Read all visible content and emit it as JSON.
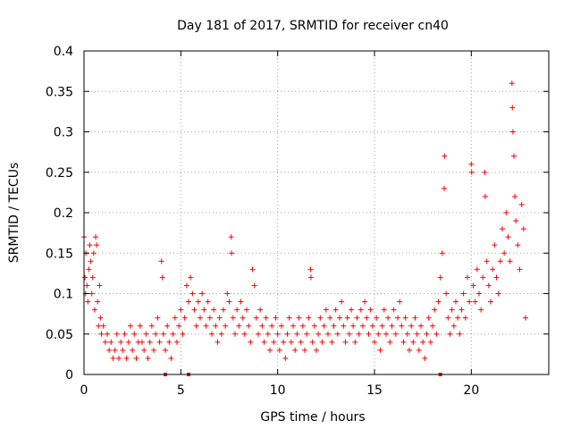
{
  "chart_data": {
    "type": "scatter",
    "title": "Day 181 of 2017, SRMTID for receiver cn40",
    "xlabel": "GPS time / hours",
    "ylabel": "SRMTID / TECUs",
    "xlim": [
      0,
      24
    ],
    "ylim": [
      0,
      0.4
    ],
    "x_ticks": [
      0,
      5,
      10,
      15,
      20
    ],
    "x_tick_labels": [
      "0",
      "5",
      "10",
      "15",
      "20"
    ],
    "y_ticks": [
      0,
      0.05,
      0.1,
      0.15,
      0.2,
      0.25,
      0.3,
      0.35,
      0.4
    ],
    "y_tick_labels": [
      "0",
      "0.05",
      "0.1",
      "0.15",
      "0.2",
      "0.25",
      "0.3",
      "0.35",
      "0.4"
    ],
    "grid": true,
    "marker": "plus",
    "color": "#ff0000",
    "series": [
      {
        "name": "SRMTID",
        "points": [
          [
            0.0,
            0.17
          ],
          [
            0.05,
            0.12
          ],
          [
            0.08,
            0.1
          ],
          [
            0.1,
            0.15
          ],
          [
            0.15,
            0.11
          ],
          [
            0.2,
            0.09
          ],
          [
            0.25,
            0.13
          ],
          [
            0.3,
            0.16
          ],
          [
            0.35,
            0.14
          ],
          [
            0.4,
            0.1
          ],
          [
            0.45,
            0.12
          ],
          [
            0.5,
            0.15
          ],
          [
            0.55,
            0.08
          ],
          [
            0.6,
            0.17
          ],
          [
            0.65,
            0.16
          ],
          [
            0.7,
            0.09
          ],
          [
            0.75,
            0.06
          ],
          [
            0.8,
            0.11
          ],
          [
            0.85,
            0.07
          ],
          [
            0.9,
            0.05
          ],
          [
            1.0,
            0.06
          ],
          [
            1.1,
            0.04
          ],
          [
            1.2,
            0.05
          ],
          [
            1.3,
            0.03
          ],
          [
            1.4,
            0.04
          ],
          [
            1.5,
            0.02
          ],
          [
            1.6,
            0.03
          ],
          [
            1.7,
            0.05
          ],
          [
            1.8,
            0.02
          ],
          [
            1.9,
            0.04
          ],
          [
            2.0,
            0.03
          ],
          [
            2.1,
            0.05
          ],
          [
            2.2,
            0.02
          ],
          [
            2.3,
            0.04
          ],
          [
            2.4,
            0.06
          ],
          [
            2.5,
            0.03
          ],
          [
            2.6,
            0.05
          ],
          [
            2.7,
            0.02
          ],
          [
            2.8,
            0.04
          ],
          [
            2.9,
            0.06
          ],
          [
            3.0,
            0.04
          ],
          [
            3.1,
            0.03
          ],
          [
            3.2,
            0.05
          ],
          [
            3.3,
            0.02
          ],
          [
            3.4,
            0.04
          ],
          [
            3.5,
            0.06
          ],
          [
            3.6,
            0.03
          ],
          [
            3.7,
            0.05
          ],
          [
            3.8,
            0.07
          ],
          [
            3.9,
            0.04
          ],
          [
            4.0,
            0.14
          ],
          [
            4.05,
            0.12
          ],
          [
            4.1,
            0.05
          ],
          [
            4.2,
            0.03
          ],
          [
            4.3,
            0.06
          ],
          [
            4.4,
            0.04
          ],
          [
            4.5,
            0.02
          ],
          [
            4.6,
            0.05
          ],
          [
            4.7,
            0.07
          ],
          [
            4.8,
            0.04
          ],
          [
            4.9,
            0.06
          ],
          [
            5.0,
            0.08
          ],
          [
            5.1,
            0.05
          ],
          [
            5.2,
            0.07
          ],
          [
            5.3,
            0.11
          ],
          [
            5.4,
            0.09
          ],
          [
            5.5,
            0.12
          ],
          [
            5.6,
            0.1
          ],
          [
            5.7,
            0.08
          ],
          [
            5.8,
            0.06
          ],
          [
            5.9,
            0.09
          ],
          [
            6.0,
            0.07
          ],
          [
            6.1,
            0.1
          ],
          [
            6.2,
            0.08
          ],
          [
            6.3,
            0.06
          ],
          [
            6.4,
            0.09
          ],
          [
            6.5,
            0.07
          ],
          [
            6.6,
            0.05
          ],
          [
            6.7,
            0.08
          ],
          [
            6.8,
            0.06
          ],
          [
            6.9,
            0.04
          ],
          [
            7.0,
            0.07
          ],
          [
            7.1,
            0.05
          ],
          [
            7.2,
            0.08
          ],
          [
            7.3,
            0.06
          ],
          [
            7.4,
            0.1
          ],
          [
            7.5,
            0.09
          ],
          [
            7.6,
            0.17
          ],
          [
            7.62,
            0.15
          ],
          [
            7.7,
            0.07
          ],
          [
            7.8,
            0.05
          ],
          [
            7.9,
            0.08
          ],
          [
            8.0,
            0.06
          ],
          [
            8.1,
            0.09
          ],
          [
            8.2,
            0.07
          ],
          [
            8.3,
            0.05
          ],
          [
            8.4,
            0.08
          ],
          [
            8.5,
            0.06
          ],
          [
            8.6,
            0.04
          ],
          [
            8.7,
            0.13
          ],
          [
            8.8,
            0.11
          ],
          [
            8.9,
            0.07
          ],
          [
            9.0,
            0.05
          ],
          [
            9.1,
            0.08
          ],
          [
            9.2,
            0.06
          ],
          [
            9.3,
            0.04
          ],
          [
            9.4,
            0.07
          ],
          [
            9.5,
            0.05
          ],
          [
            9.6,
            0.03
          ],
          [
            9.7,
            0.06
          ],
          [
            9.8,
            0.04
          ],
          [
            9.9,
            0.07
          ],
          [
            10.0,
            0.05
          ],
          [
            10.1,
            0.03
          ],
          [
            10.2,
            0.06
          ],
          [
            10.3,
            0.04
          ],
          [
            10.4,
            0.02
          ],
          [
            10.5,
            0.05
          ],
          [
            10.6,
            0.07
          ],
          [
            10.7,
            0.04
          ],
          [
            10.8,
            0.06
          ],
          [
            10.9,
            0.03
          ],
          [
            11.0,
            0.05
          ],
          [
            11.1,
            0.07
          ],
          [
            11.2,
            0.04
          ],
          [
            11.3,
            0.06
          ],
          [
            11.4,
            0.03
          ],
          [
            11.5,
            0.05
          ],
          [
            11.6,
            0.07
          ],
          [
            11.7,
            0.13
          ],
          [
            11.72,
            0.12
          ],
          [
            11.8,
            0.04
          ],
          [
            11.9,
            0.06
          ],
          [
            12.0,
            0.03
          ],
          [
            12.1,
            0.05
          ],
          [
            12.2,
            0.07
          ],
          [
            12.3,
            0.04
          ],
          [
            12.4,
            0.06
          ],
          [
            12.5,
            0.08
          ],
          [
            12.6,
            0.05
          ],
          [
            12.7,
            0.07
          ],
          [
            12.8,
            0.04
          ],
          [
            12.9,
            0.06
          ],
          [
            13.0,
            0.08
          ],
          [
            13.1,
            0.05
          ],
          [
            13.2,
            0.07
          ],
          [
            13.3,
            0.09
          ],
          [
            13.4,
            0.06
          ],
          [
            13.5,
            0.04
          ],
          [
            13.6,
            0.07
          ],
          [
            13.7,
            0.05
          ],
          [
            13.8,
            0.08
          ],
          [
            13.9,
            0.06
          ],
          [
            14.0,
            0.04
          ],
          [
            14.1,
            0.07
          ],
          [
            14.2,
            0.05
          ],
          [
            14.3,
            0.08
          ],
          [
            14.4,
            0.06
          ],
          [
            14.5,
            0.09
          ],
          [
            14.6,
            0.07
          ],
          [
            14.7,
            0.05
          ],
          [
            14.8,
            0.08
          ],
          [
            14.9,
            0.06
          ],
          [
            15.0,
            0.04
          ],
          [
            15.1,
            0.07
          ],
          [
            15.2,
            0.05
          ],
          [
            15.3,
            0.03
          ],
          [
            15.4,
            0.06
          ],
          [
            15.5,
            0.08
          ],
          [
            15.6,
            0.05
          ],
          [
            15.7,
            0.07
          ],
          [
            15.8,
            0.04
          ],
          [
            15.9,
            0.06
          ],
          [
            16.0,
            0.08
          ],
          [
            16.1,
            0.05
          ],
          [
            16.2,
            0.07
          ],
          [
            16.3,
            0.09
          ],
          [
            16.4,
            0.06
          ],
          [
            16.5,
            0.04
          ],
          [
            16.6,
            0.07
          ],
          [
            16.7,
            0.05
          ],
          [
            16.8,
            0.03
          ],
          [
            16.9,
            0.06
          ],
          [
            17.0,
            0.04
          ],
          [
            17.1,
            0.07
          ],
          [
            17.2,
            0.05
          ],
          [
            17.3,
            0.03
          ],
          [
            17.4,
            0.06
          ],
          [
            17.5,
            0.04
          ],
          [
            17.6,
            0.02
          ],
          [
            17.7,
            0.05
          ],
          [
            17.8,
            0.07
          ],
          [
            17.9,
            0.04
          ],
          [
            18.0,
            0.06
          ],
          [
            18.1,
            0.08
          ],
          [
            18.2,
            0.05
          ],
          [
            18.3,
            0.09
          ],
          [
            18.4,
            0.12
          ],
          [
            18.5,
            0.15
          ],
          [
            18.6,
            0.23
          ],
          [
            18.62,
            0.27
          ],
          [
            18.7,
            0.1
          ],
          [
            18.8,
            0.07
          ],
          [
            18.9,
            0.05
          ],
          [
            19.0,
            0.08
          ],
          [
            19.1,
            0.06
          ],
          [
            19.2,
            0.09
          ],
          [
            19.3,
            0.07
          ],
          [
            19.4,
            0.05
          ],
          [
            19.5,
            0.08
          ],
          [
            19.6,
            0.1
          ],
          [
            19.7,
            0.07
          ],
          [
            19.8,
            0.12
          ],
          [
            19.9,
            0.09
          ],
          [
            20.0,
            0.26
          ],
          [
            20.02,
            0.25
          ],
          [
            20.1,
            0.11
          ],
          [
            20.2,
            0.09
          ],
          [
            20.3,
            0.13
          ],
          [
            20.4,
            0.1
          ],
          [
            20.5,
            0.08
          ],
          [
            20.6,
            0.12
          ],
          [
            20.7,
            0.25
          ],
          [
            20.72,
            0.22
          ],
          [
            20.8,
            0.14
          ],
          [
            20.9,
            0.11
          ],
          [
            21.0,
            0.09
          ],
          [
            21.1,
            0.13
          ],
          [
            21.2,
            0.16
          ],
          [
            21.3,
            0.12
          ],
          [
            21.4,
            0.1
          ],
          [
            21.5,
            0.14
          ],
          [
            21.6,
            0.18
          ],
          [
            21.7,
            0.15
          ],
          [
            21.8,
            0.2
          ],
          [
            21.9,
            0.17
          ],
          [
            22.0,
            0.14
          ],
          [
            22.1,
            0.36
          ],
          [
            22.12,
            0.33
          ],
          [
            22.15,
            0.3
          ],
          [
            22.2,
            0.27
          ],
          [
            22.25,
            0.22
          ],
          [
            22.3,
            0.19
          ],
          [
            22.4,
            0.16
          ],
          [
            22.5,
            0.13
          ],
          [
            22.6,
            0.21
          ],
          [
            22.7,
            0.18
          ],
          [
            22.8,
            0.07
          ]
        ]
      }
    ],
    "bottom_markers_x": [
      4.2,
      5.4,
      18.4
    ]
  }
}
